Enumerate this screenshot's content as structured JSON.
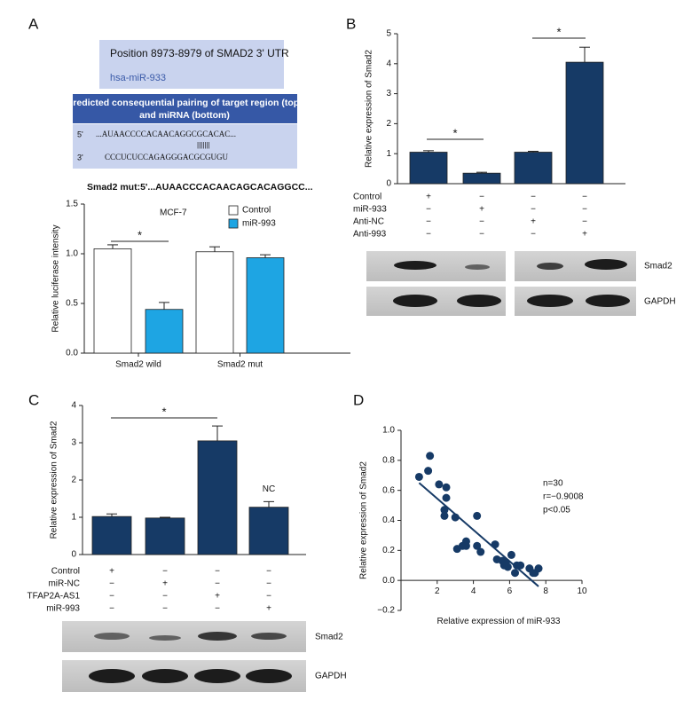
{
  "panel_labels": [
    "A",
    "B",
    "C",
    "D"
  ],
  "sequence_box": {
    "position": "Position 8973-8979 of SMAD2 3' UTR",
    "mirna": "hsa-miR-933",
    "header": [
      "Predicted consequential pairing of target region (top)",
      "and miRNA (bottom)"
    ],
    "top_end": "5'",
    "top_seq": "...AUAACCCCACAACAGGCGCACAC...",
    "pairing": "|||||||",
    "bottom_end": "3'",
    "bottom_seq": "CCCUCUCCAGAGGGACGCGUGU",
    "mutant": "Smad2 mut:5'...AUAACCCACAACAGCACAGGCC..."
  },
  "chart_data": [
    {
      "type": "bar",
      "ylabel": "Relative luciferase intensity",
      "annotation": "MCF-7",
      "significance": [
        "*"
      ],
      "categories": [
        "Smad2 wild",
        "Smad2 mut"
      ],
      "series": [
        {
          "name": "Control",
          "color": "#ffffff",
          "values": [
            1.05,
            1.02
          ],
          "errors": [
            0.04,
            0.05
          ]
        },
        {
          "name": "miR-993",
          "color": "#1ea5e3",
          "values": [
            0.44,
            0.96
          ],
          "errors": [
            0.07,
            0.03
          ]
        }
      ],
      "ylim": [
        0,
        1.5
      ],
      "yticks": [
        {
          "value": 0,
          "label": "0.0"
        },
        0.5,
        {
          "value": 1,
          "label": "1.0"
        },
        1.5
      ]
    },
    {
      "type": "bar",
      "ylabel": "Relative expression of Smad2",
      "significance": [
        "*",
        "*"
      ],
      "color": "#163a66",
      "values": [
        1.05,
        0.35,
        1.05,
        4.05
      ],
      "errors": [
        0.05,
        0.03,
        0.03,
        0.5
      ],
      "ylim": [
        0,
        5
      ],
      "yticks": [
        0,
        1,
        2,
        3,
        4,
        5
      ],
      "conditions": [
        {
          "name": "Control",
          "signs": [
            "+",
            "−",
            "−",
            "−"
          ]
        },
        {
          "name": "miR-933",
          "signs": [
            "−",
            "+",
            "−",
            "−"
          ]
        },
        {
          "name": "Anti-NC",
          "signs": [
            "−",
            "−",
            "+",
            "−"
          ]
        },
        {
          "name": "Anti-993",
          "signs": [
            "−",
            "−",
            "−",
            "+"
          ]
        }
      ],
      "blot_labels": [
        "Smad2",
        "GAPDH"
      ]
    },
    {
      "type": "bar",
      "ylabel": "Relative expression of Smad2",
      "significance": [
        "*"
      ],
      "annotation": "NC",
      "color": "#163a66",
      "values": [
        1.02,
        0.98,
        3.05,
        1.27
      ],
      "errors": [
        0.07,
        0.02,
        0.4,
        0.15
      ],
      "ylim": [
        0,
        4
      ],
      "yticks": [
        0,
        1,
        2,
        3,
        4
      ],
      "conditions": [
        {
          "name": "Control",
          "signs": [
            "+",
            "−",
            "−",
            "−"
          ]
        },
        {
          "name": "miR-NC",
          "signs": [
            "−",
            "+",
            "−",
            "−"
          ]
        },
        {
          "name": "TFAP2A-AS1",
          "signs": [
            "−",
            "−",
            "+",
            "−"
          ]
        },
        {
          "name": "miR-993",
          "signs": [
            "−",
            "−",
            "−",
            "+"
          ]
        }
      ],
      "blot_labels": [
        "Smad2",
        "GAPDH"
      ]
    },
    {
      "type": "scatter",
      "xlabel": "Relative expression of miR-933",
      "ylabel": "Relative expression of Smad2",
      "annotations": [
        "n=30",
        "r=−0.9008",
        "p<0.05"
      ],
      "color": "#163a66",
      "x": [
        1.0,
        1.5,
        1.6,
        2.1,
        2.4,
        2.4,
        2.5,
        2.5,
        3.0,
        3.1,
        3.4,
        3.6,
        3.6,
        4.2,
        4.2,
        4.4,
        5.2,
        5.3,
        5.6,
        5.7,
        5.9,
        6.1,
        6.3,
        6.4,
        6.6,
        7.1,
        7.3,
        7.4,
        7.6,
        5.8
      ],
      "values": [
        0.69,
        0.73,
        0.83,
        0.64,
        0.47,
        0.43,
        0.62,
        0.55,
        0.42,
        0.21,
        0.23,
        0.26,
        0.23,
        0.43,
        0.23,
        0.19,
        0.24,
        0.14,
        0.13,
        0.1,
        0.09,
        0.17,
        0.05,
        0.1,
        0.1,
        0.08,
        0.05,
        0.05,
        0.08,
        0.12
      ],
      "trend": {
        "x": [
          1.0,
          7.6
        ],
        "values": [
          0.65,
          -0.04
        ]
      },
      "xlim": [
        0,
        10
      ],
      "xticks": [
        2,
        4,
        6,
        8,
        10
      ],
      "ylim": [
        -0.2,
        1.0
      ],
      "yticks": [
        {
          "value": -0.2,
          "label": "−0.2"
        },
        {
          "value": 0,
          "label": "0.0"
        },
        0.2,
        0.4,
        0.6,
        0.8,
        {
          "value": 1,
          "label": "1.0"
        }
      ]
    }
  ]
}
